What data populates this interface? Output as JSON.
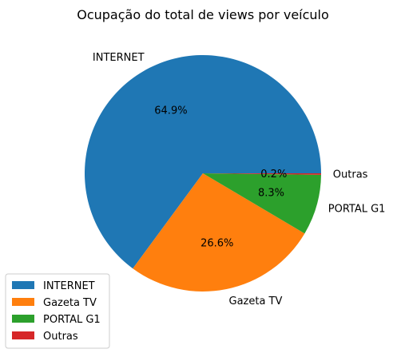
{
  "chart_data": {
    "type": "pie",
    "title": "Ocupação do total de views por veículo",
    "slices": [
      {
        "label": "INTERNET",
        "value": 64.9,
        "pct_label": "64.9%",
        "color": "#1f77b4"
      },
      {
        "label": "Gazeta TV",
        "value": 26.6,
        "pct_label": "26.6%",
        "color": "#ff7f0e"
      },
      {
        "label": "PORTAL G1",
        "value": 8.3,
        "pct_label": "8.3%",
        "color": "#2ca02c"
      },
      {
        "label": "Outras",
        "value": 0.2,
        "pct_label": "0.2%",
        "color": "#d62728"
      }
    ],
    "start_angle_deg": 0,
    "direction": "counterclockwise",
    "legend": {
      "placement": "lower-left",
      "entries": [
        "INTERNET",
        "Gazeta TV",
        "PORTAL G1",
        "Outras"
      ]
    }
  }
}
